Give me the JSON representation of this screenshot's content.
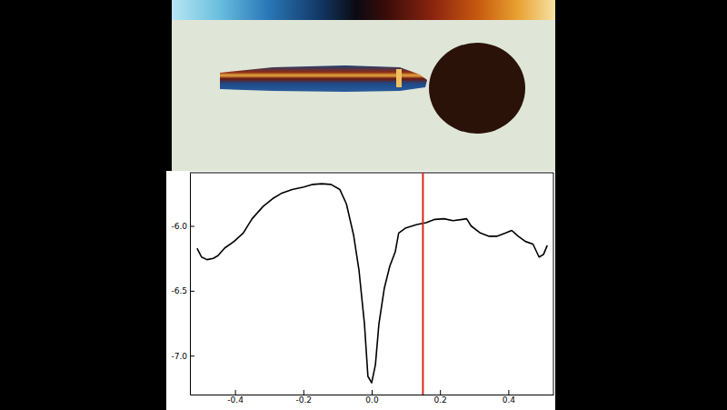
{
  "chart_data": {
    "type": "line",
    "color": "#000000",
    "x": [
      -0.511,
      -0.498,
      -0.482,
      -0.464,
      -0.45,
      -0.43,
      -0.403,
      -0.376,
      -0.35,
      -0.318,
      -0.29,
      -0.265,
      -0.233,
      -0.199,
      -0.172,
      -0.146,
      -0.119,
      -0.093,
      -0.074,
      -0.053,
      -0.037,
      -0.021,
      -0.011,
      0.0,
      0.011,
      0.021,
      0.037,
      0.053,
      0.069,
      0.079,
      0.1,
      0.132,
      0.159,
      0.185,
      0.212,
      0.238,
      0.265,
      0.278,
      0.291,
      0.318,
      0.344,
      0.366,
      0.392,
      0.41,
      0.429,
      0.45,
      0.472,
      0.49,
      0.503,
      0.514
    ],
    "values": [
      -6.172,
      -6.24,
      -6.26,
      -6.25,
      -6.23,
      -6.17,
      -6.12,
      -6.055,
      -5.945,
      -5.85,
      -5.79,
      -5.75,
      -5.72,
      -5.7,
      -5.68,
      -5.675,
      -5.68,
      -5.72,
      -5.83,
      -6.07,
      -6.345,
      -6.76,
      -7.16,
      -7.21,
      -7.07,
      -6.76,
      -6.48,
      -6.31,
      -6.2,
      -6.055,
      -6.015,
      -5.99,
      -5.975,
      -5.95,
      -5.945,
      -5.96,
      -5.95,
      -5.945,
      -6.0,
      -6.055,
      -6.08,
      -6.08,
      -6.055,
      -6.035,
      -6.08,
      -6.12,
      -6.14,
      -6.24,
      -6.22,
      -6.15
    ],
    "xlim": [
      -0.532,
      0.532
    ],
    "xticks": [
      -0.4,
      -0.2,
      {
        "value": 0,
        "label": "0.0"
      },
      0.2,
      0.4
    ],
    "ylim": [
      -7.3,
      -5.59
    ],
    "yticks": [
      {
        "value": -7,
        "label": "-7.0"
      },
      -6.5,
      {
        "value": -6,
        "label": "-6.0"
      }
    ],
    "vline": {
      "x": 0.15,
      "color": "#d42a1e"
    }
  }
}
